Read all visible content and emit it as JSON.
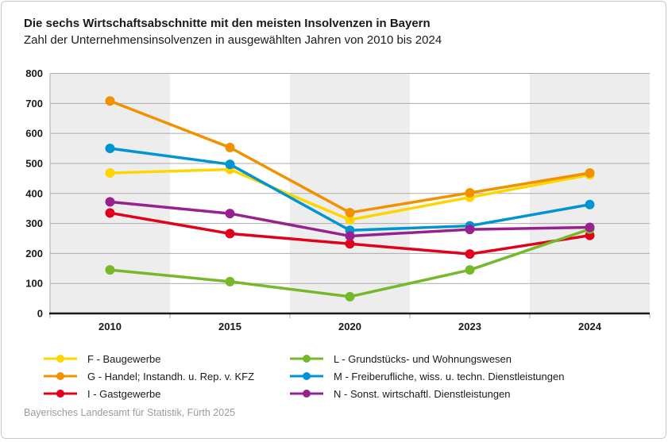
{
  "header": {
    "title": "Die sechs Wirtschaftsabschnitte mit den meisten Insolvenzen in Bayern",
    "subtitle": "Zahl der Unternehmensinsolvenzen in ausgewählten Jahren von 2010 bis 2024"
  },
  "footer": {
    "source": "Bayerisches Landesamt für Statistik, Fürth 2025"
  },
  "chart_data": {
    "type": "line",
    "title": "Die sechs Wirtschaftsabschnitte mit den meisten Insolvenzen in Bayern",
    "subtitle": "Zahl der Unternehmensinsolvenzen in ausgewählten Jahren von 2010 bis 2024",
    "categories": [
      "2010",
      "2015",
      "2020",
      "2023",
      "2024"
    ],
    "series": [
      {
        "key": "F",
        "label": "F - Baugewerbe",
        "color": "#FFD500",
        "values": [
          468,
          480,
          312,
          387,
          462
        ]
      },
      {
        "key": "G",
        "label": "G - Handel; Instandh. u. Rep. v. KFZ",
        "color": "#F29100",
        "values": [
          708,
          553,
          336,
          402,
          468
        ]
      },
      {
        "key": "I",
        "label": "I - Gastgewerbe",
        "color": "#E2001A",
        "values": [
          335,
          266,
          232,
          198,
          260
        ]
      },
      {
        "key": "L",
        "label": "L - Grundstücks- und Wohnungswesen",
        "color": "#76B82A",
        "values": [
          145,
          106,
          56,
          145,
          281
        ]
      },
      {
        "key": "M",
        "label": "M - Freiberufliche, wiss. u. techn. Dienstleistungen",
        "color": "#0095D2",
        "values": [
          550,
          497,
          277,
          292,
          363
        ]
      },
      {
        "key": "N",
        "label": "N - Sonst. wirtschaftl. Dienstleistungen",
        "color": "#97218F",
        "values": [
          372,
          333,
          258,
          280,
          287
        ]
      }
    ],
    "xlabel": "",
    "ylabel": "",
    "ylim": [
      0,
      800
    ],
    "ytick_step": 100,
    "grid": true,
    "alternating_bands": true,
    "legend_position": "bottom",
    "legend_columns": 2,
    "styles": {
      "band_color": "#EDEDED",
      "gridline_color": "#ABABAB",
      "axis_color": "#1A1A1A",
      "tick_color": "#ABABAB",
      "label_color": "#1A1A1A"
    }
  }
}
